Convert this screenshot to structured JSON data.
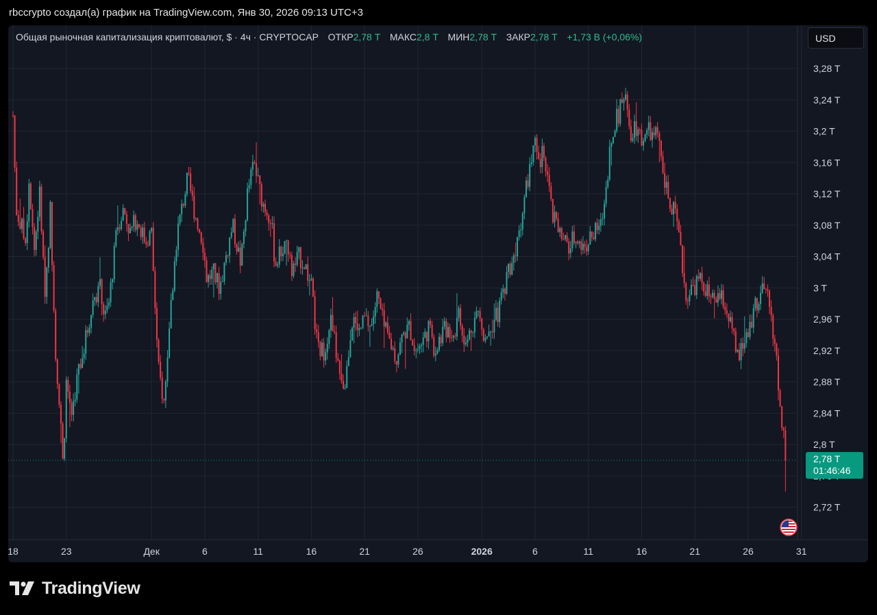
{
  "caption": "rbccrypto создал(а) график на TradingView.com, Янв 30, 2026 09:13 UTC+3",
  "legend": {
    "title": "Общая рыночная капитализация криптовалют, $ · 4ч · CRYPTOCAP",
    "open_label": "ОТКР",
    "open_value": "2,78 T",
    "high_label": "МАКС",
    "high_value": "2,8 T",
    "low_label": "МИН",
    "low_value": "2,78 T",
    "close_label": "ЗАКР",
    "close_value": "2,78 T",
    "change": "+1,73 B (+0,06%)"
  },
  "currency_button": "USD",
  "last_price": {
    "value": "2,78 T",
    "countdown": "01:46:46"
  },
  "brand": "TradingView",
  "colors": {
    "up": "#26a69a",
    "down": "#f23645",
    "background": "#131722",
    "grid": "#232733",
    "last_price_line": "#089981"
  },
  "chart_data": {
    "type": "candlestick",
    "interval": "4h",
    "unit": "T USD",
    "ylim": [
      2.685,
      3.32
    ],
    "y_ticks": [
      {
        "value": 3.28,
        "label": "3,28 T"
      },
      {
        "value": 3.24,
        "label": "3,24 T"
      },
      {
        "value": 3.2,
        "label": "3,2 T"
      },
      {
        "value": 3.16,
        "label": "3,16 T"
      },
      {
        "value": 3.12,
        "label": "3,12 T"
      },
      {
        "value": 3.08,
        "label": "3,08 T"
      },
      {
        "value": 3.04,
        "label": "3,04 T"
      },
      {
        "value": 3.0,
        "label": "3 T"
      },
      {
        "value": 2.96,
        "label": "2,96 T"
      },
      {
        "value": 2.92,
        "label": "2,92 T"
      },
      {
        "value": 2.88,
        "label": "2,88 T"
      },
      {
        "value": 2.84,
        "label": "2,84 T"
      },
      {
        "value": 2.8,
        "label": "2,8 T"
      },
      {
        "value": 2.76,
        "label": "2,76 T"
      },
      {
        "value": 2.72,
        "label": "2,72 T"
      }
    ],
    "x_ticks": [
      {
        "day": 0,
        "label": "18",
        "bold": false
      },
      {
        "day": 5,
        "label": "23",
        "bold": false
      },
      {
        "day": 13,
        "label": "Дек",
        "bold": false
      },
      {
        "day": 18,
        "label": "6",
        "bold": false
      },
      {
        "day": 23,
        "label": "11",
        "bold": false
      },
      {
        "day": 28,
        "label": "16",
        "bold": false
      },
      {
        "day": 33,
        "label": "21",
        "bold": false
      },
      {
        "day": 38,
        "label": "26",
        "bold": false
      },
      {
        "day": 44,
        "label": "2026",
        "bold": true
      },
      {
        "day": 49,
        "label": "6",
        "bold": false
      },
      {
        "day": 54,
        "label": "11",
        "bold": false
      },
      {
        "day": 59,
        "label": "16",
        "bold": false
      },
      {
        "day": 64,
        "label": "21",
        "bold": false
      },
      {
        "day": 69,
        "label": "26",
        "bold": false
      },
      {
        "day": 74,
        "label": "31",
        "bold": false
      }
    ],
    "last_value": 2.78,
    "path": [
      [
        0.0,
        3.22
      ],
      [
        0.3,
        3.1
      ],
      [
        1.2,
        3.06
      ],
      [
        1.5,
        3.14
      ],
      [
        2.0,
        3.05
      ],
      [
        2.5,
        3.12
      ],
      [
        3.0,
        2.99
      ],
      [
        3.5,
        3.1
      ],
      [
        4.0,
        2.92
      ],
      [
        4.5,
        2.82
      ],
      [
        4.7,
        2.77
      ],
      [
        5.0,
        2.88
      ],
      [
        5.5,
        2.84
      ],
      [
        6.2,
        2.9
      ],
      [
        6.6,
        2.92
      ],
      [
        7.2,
        2.96
      ],
      [
        7.6,
        2.99
      ],
      [
        8.2,
        3.0
      ],
      [
        8.6,
        2.96
      ],
      [
        9.0,
        2.98
      ],
      [
        9.8,
        3.08
      ],
      [
        10.4,
        3.1
      ],
      [
        11.0,
        3.07
      ],
      [
        11.6,
        3.09
      ],
      [
        12.4,
        3.06
      ],
      [
        13.0,
        3.07
      ],
      [
        13.6,
        2.9
      ],
      [
        14.2,
        2.85
      ],
      [
        14.6,
        2.94
      ],
      [
        15.4,
        3.07
      ],
      [
        16.4,
        3.14
      ],
      [
        17.0,
        3.1
      ],
      [
        17.8,
        3.06
      ],
      [
        18.2,
        3.01
      ],
      [
        18.8,
        3.02
      ],
      [
        19.4,
        3.0
      ],
      [
        20.0,
        3.04
      ],
      [
        20.6,
        3.08
      ],
      [
        21.4,
        3.03
      ],
      [
        22.0,
        3.12
      ],
      [
        22.6,
        3.16
      ],
      [
        23.4,
        3.11
      ],
      [
        24.2,
        3.09
      ],
      [
        24.6,
        3.03
      ],
      [
        25.6,
        3.06
      ],
      [
        26.2,
        3.02
      ],
      [
        26.8,
        3.04
      ],
      [
        27.4,
        3.03
      ],
      [
        28.0,
        3.0
      ],
      [
        28.6,
        2.92
      ],
      [
        29.2,
        2.92
      ],
      [
        29.8,
        2.96
      ],
      [
        30.2,
        2.93
      ],
      [
        30.8,
        2.87
      ],
      [
        31.2,
        2.88
      ],
      [
        31.8,
        2.96
      ],
      [
        32.4,
        2.94
      ],
      [
        33.0,
        2.96
      ],
      [
        33.6,
        2.95
      ],
      [
        34.2,
        2.99
      ],
      [
        34.8,
        2.95
      ],
      [
        35.4,
        2.93
      ],
      [
        36.0,
        2.91
      ],
      [
        36.6,
        2.94
      ],
      [
        37.2,
        2.95
      ],
      [
        37.8,
        2.92
      ],
      [
        38.4,
        2.93
      ],
      [
        39.0,
        2.95
      ],
      [
        39.6,
        2.92
      ],
      [
        40.2,
        2.94
      ],
      [
        40.8,
        2.95
      ],
      [
        41.4,
        2.94
      ],
      [
        41.8,
        2.97
      ],
      [
        42.4,
        2.92
      ],
      [
        43.0,
        2.95
      ],
      [
        43.6,
        2.97
      ],
      [
        44.2,
        2.94
      ],
      [
        44.8,
        2.95
      ],
      [
        45.6,
        2.97
      ],
      [
        46.4,
        3.02
      ],
      [
        47.0,
        3.04
      ],
      [
        47.6,
        3.08
      ],
      [
        48.2,
        3.13
      ],
      [
        48.6,
        3.16
      ],
      [
        49.0,
        3.18
      ],
      [
        49.4,
        3.15
      ],
      [
        49.8,
        3.18
      ],
      [
        50.2,
        3.14
      ],
      [
        50.6,
        3.09
      ],
      [
        51.0,
        3.08
      ],
      [
        51.6,
        3.06
      ],
      [
        52.2,
        3.05
      ],
      [
        52.8,
        3.07
      ],
      [
        53.4,
        3.05
      ],
      [
        54.0,
        3.06
      ],
      [
        54.6,
        3.07
      ],
      [
        55.2,
        3.08
      ],
      [
        55.6,
        3.12
      ],
      [
        56.2,
        3.2
      ],
      [
        56.8,
        3.22
      ],
      [
        57.2,
        3.25
      ],
      [
        57.6,
        3.23
      ],
      [
        58.0,
        3.2
      ],
      [
        58.4,
        3.21
      ],
      [
        59.0,
        3.19
      ],
      [
        59.6,
        3.2
      ],
      [
        60.2,
        3.19
      ],
      [
        60.6,
        3.2
      ],
      [
        61.0,
        3.14
      ],
      [
        61.6,
        3.11
      ],
      [
        62.2,
        3.09
      ],
      [
        62.6,
        3.05
      ],
      [
        63.2,
        2.99
      ],
      [
        63.8,
        3.0
      ],
      [
        64.4,
        3.01
      ],
      [
        65.0,
        3.0
      ],
      [
        65.6,
        2.98
      ],
      [
        66.2,
        2.99
      ],
      [
        66.8,
        2.98
      ],
      [
        67.4,
        2.95
      ],
      [
        68.0,
        2.91
      ],
      [
        68.4,
        2.92
      ],
      [
        69.0,
        2.94
      ],
      [
        69.6,
        2.98
      ],
      [
        70.2,
        2.99
      ],
      [
        70.6,
        3.0
      ],
      [
        71.2,
        2.96
      ],
      [
        71.6,
        2.92
      ],
      [
        72.0,
        2.84
      ],
      [
        72.4,
        2.81
      ],
      [
        72.6,
        2.78
      ]
    ]
  }
}
